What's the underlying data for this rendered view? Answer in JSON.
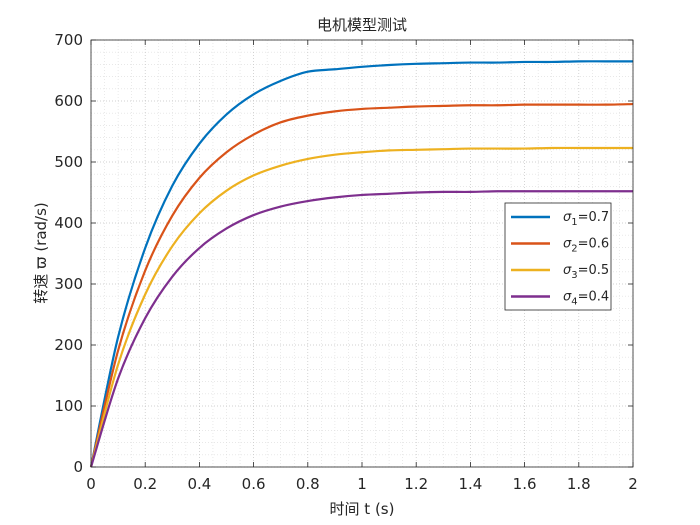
{
  "chart_data": {
    "type": "line",
    "title": "电机模型测试",
    "xlabel": "时间 t (s)",
    "ylabel": "转速 ϖ  (rad/s)",
    "xlim": [
      0,
      2
    ],
    "ylim": [
      0,
      700
    ],
    "x_ticks": [
      "0",
      "0.2",
      "0.4",
      "0.6",
      "0.8",
      "1",
      "1.2",
      "1.4",
      "1.6",
      "1.8",
      "2"
    ],
    "y_ticks": [
      "0",
      "100",
      "200",
      "300",
      "400",
      "500",
      "600",
      "700"
    ],
    "grid": "major and minor, dotted",
    "legend_position": "right",
    "x": [
      0,
      0.1,
      0.2,
      0.3,
      0.4,
      0.5,
      0.6,
      0.7,
      0.8,
      0.9,
      1.0,
      1.1,
      1.2,
      1.3,
      1.4,
      1.5,
      1.6,
      1.7,
      1.8,
      1.9,
      2.0
    ],
    "series": [
      {
        "name": "σ1=0.7",
        "symbol": "σ",
        "sub": "1",
        "suffix": "=0.7",
        "color": "#0072BD",
        "values": [
          0,
          213,
          359,
          461,
          530,
          578,
          611,
          633,
          648,
          652,
          656,
          659,
          661,
          662,
          663,
          663,
          664,
          664,
          665,
          665,
          665
        ]
      },
      {
        "name": "σ2=0.6",
        "symbol": "σ",
        "sub": "2",
        "suffix": "=0.6",
        "color": "#D95319",
        "values": [
          0,
          191,
          322,
          412,
          474,
          516,
          545,
          565,
          576,
          583,
          587,
          589,
          591,
          592,
          593,
          593,
          594,
          594,
          594,
          594,
          595
        ]
      },
      {
        "name": "σ3=0.5",
        "symbol": "σ",
        "sub": "3",
        "suffix": "=0.5",
        "color": "#EDB120",
        "values": [
          0,
          168,
          283,
          362,
          416,
          453,
          478,
          494,
          505,
          512,
          516,
          519,
          520,
          521,
          522,
          522,
          522,
          523,
          523,
          523,
          523
        ]
      },
      {
        "name": "σ4=0.4",
        "symbol": "σ",
        "sub": "4",
        "suffix": "=0.4",
        "color": "#7E2F8E",
        "values": [
          0,
          145,
          244,
          312,
          359,
          391,
          413,
          427,
          436,
          442,
          446,
          448,
          450,
          451,
          451,
          452,
          452,
          452,
          452,
          452,
          452
        ]
      }
    ]
  }
}
